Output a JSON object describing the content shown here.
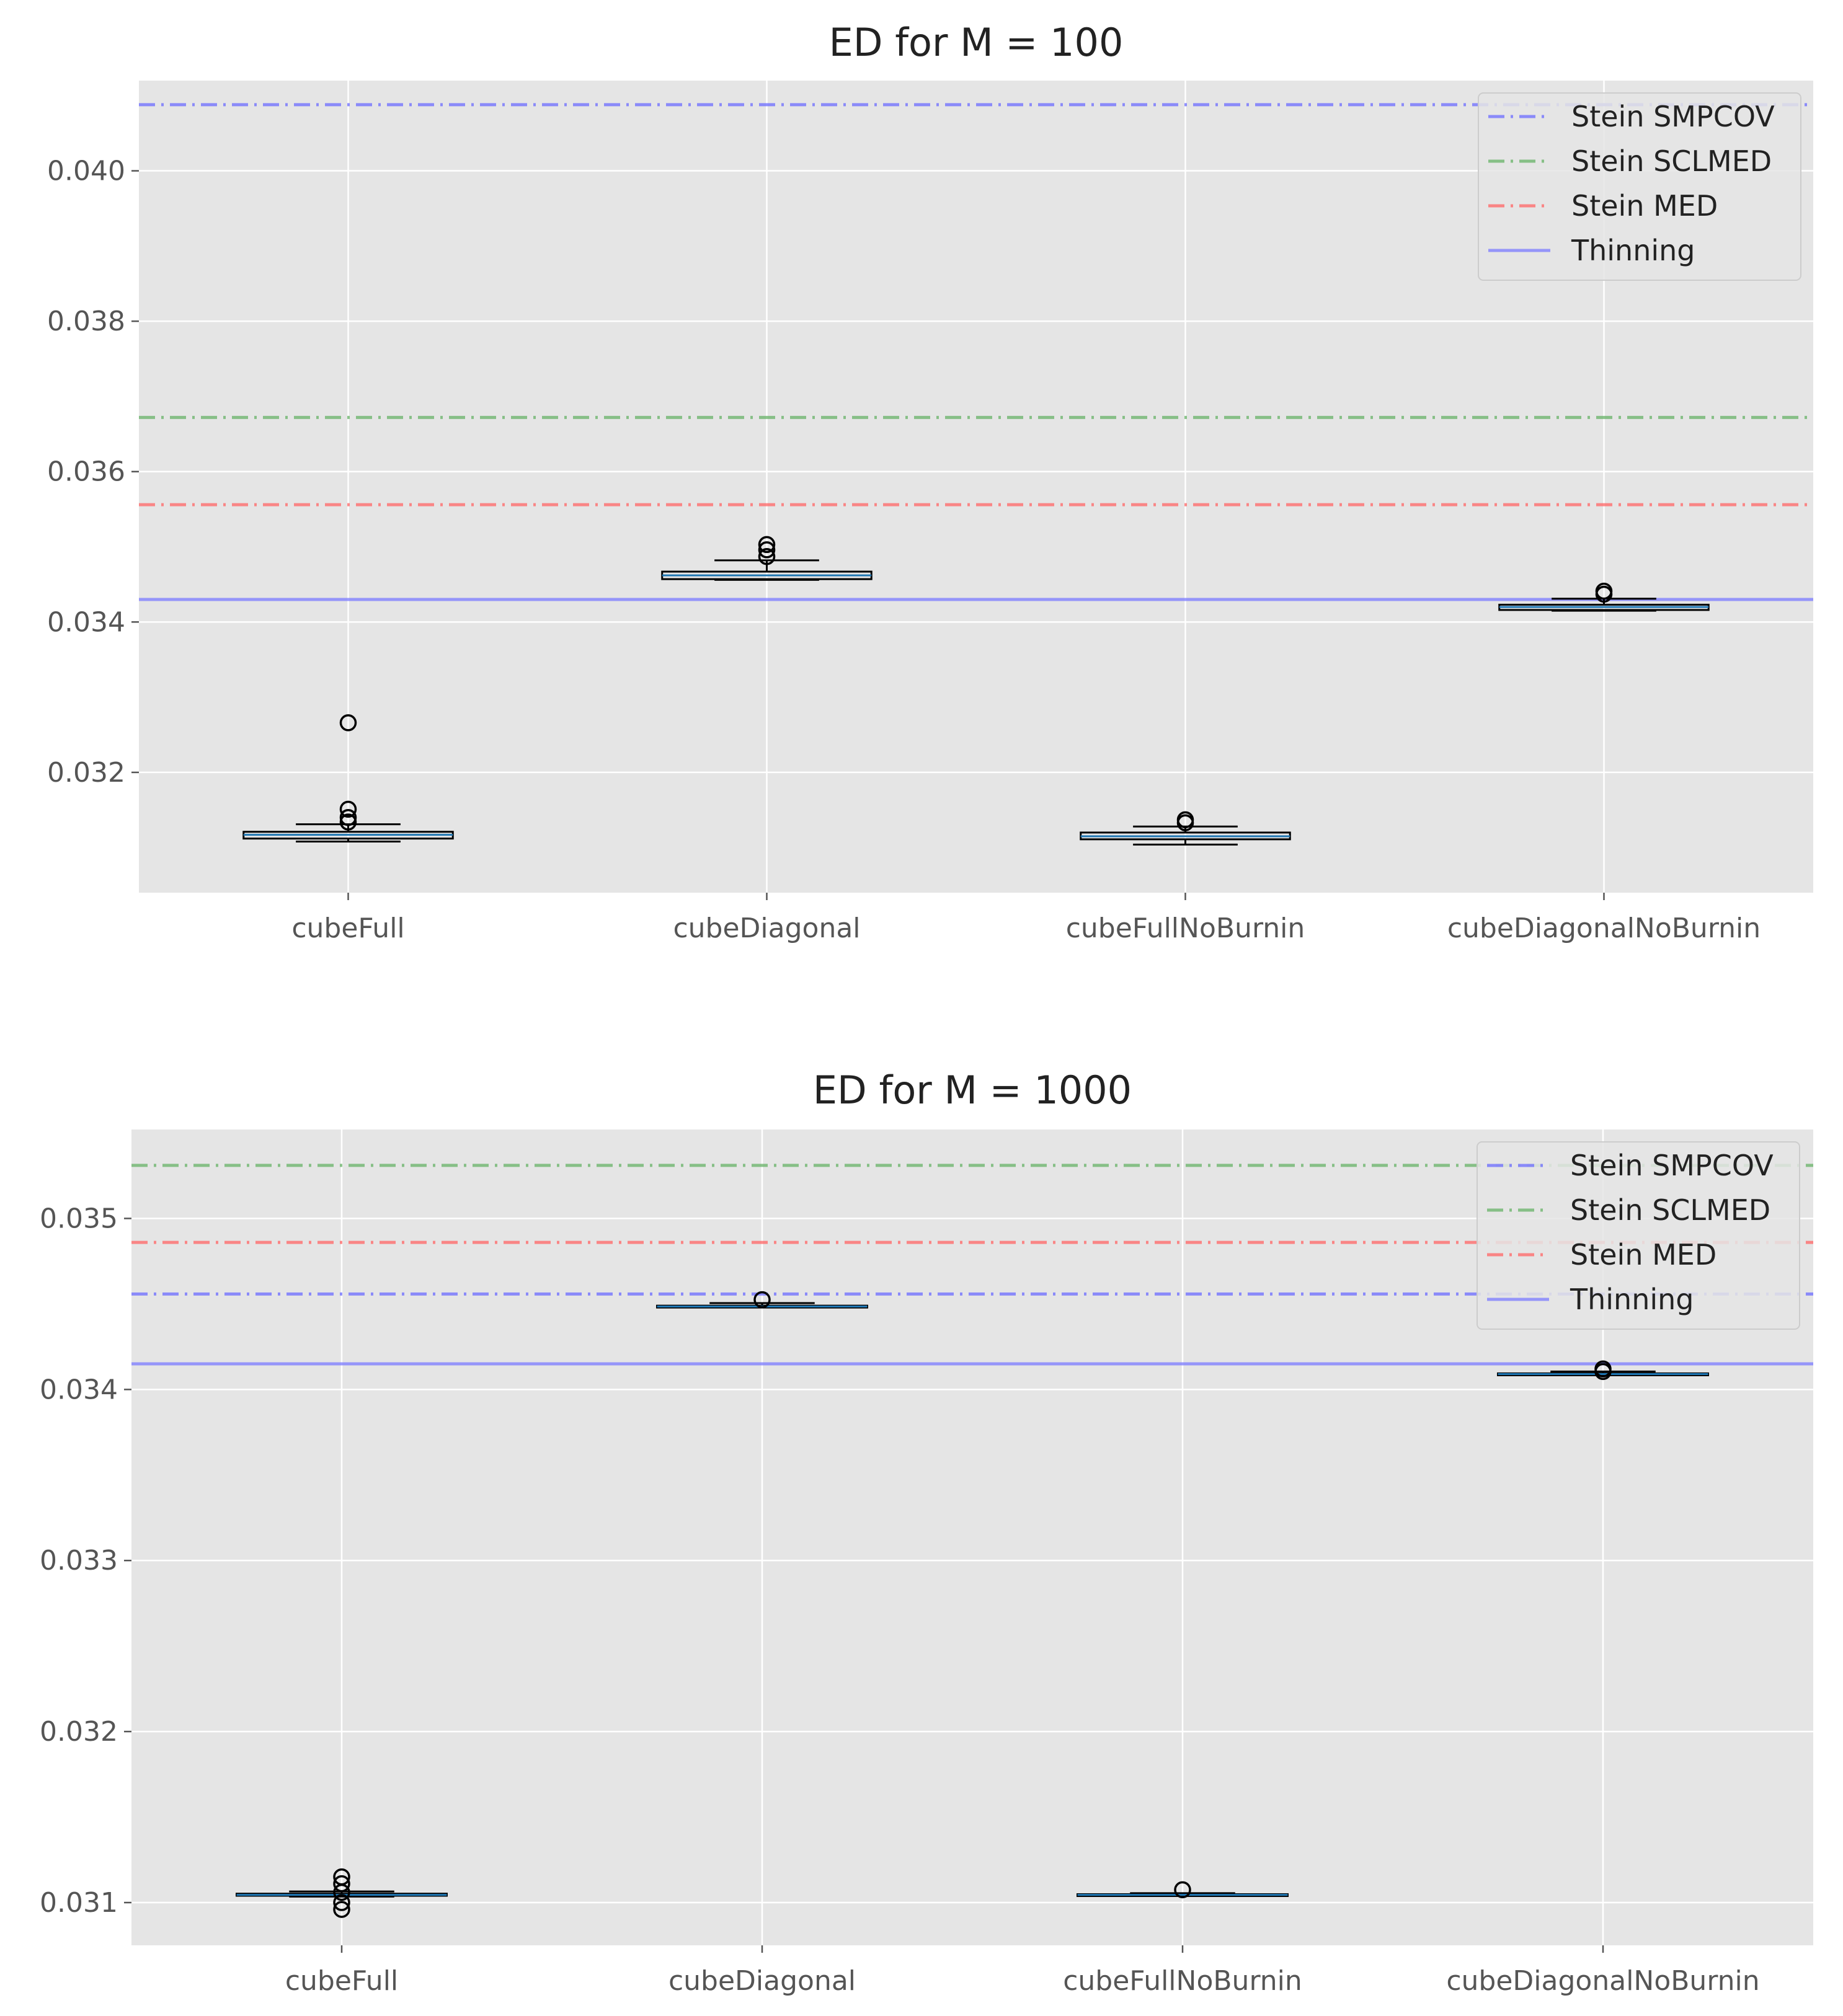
{
  "colors": {
    "background": "#e5e5e5",
    "grid": "#ffffff",
    "smpcov": "#6b6bff",
    "sclmed": "#66b266",
    "med": "#ff6464",
    "thinning": "#7a7aff",
    "median": "#1f77b4",
    "box": "#000000"
  },
  "chart_data": [
    {
      "type": "box",
      "title": "ED for M = 100",
      "categories": [
        "cubeFull",
        "cubeDiagonal",
        "cubeFullNoBurnin",
        "cubeDiagonalNoBurnin"
      ],
      "ylim": [
        0.0304,
        0.0412
      ],
      "yticks": [
        0.032,
        0.034,
        0.036,
        0.038,
        0.04
      ],
      "ytick_labels": [
        "0.032",
        "0.034",
        "0.036",
        "0.038",
        "0.040"
      ],
      "grid": true,
      "legend_position": "top-right",
      "reference_lines": [
        {
          "name": "Stein SMPCOV",
          "value": 0.04088,
          "style": "dashdot",
          "color_key": "smpcov"
        },
        {
          "name": "Stein SCLMED",
          "value": 0.03672,
          "style": "dashdot",
          "color_key": "sclmed"
        },
        {
          "name": "Stein MED",
          "value": 0.03556,
          "style": "dashdot",
          "color_key": "med"
        },
        {
          "name": "Thinning",
          "value": 0.0343,
          "style": "solid",
          "color_key": "thinning"
        }
      ],
      "boxes": [
        {
          "whisker_low": 0.03108,
          "q1": 0.03112,
          "median": 0.03117,
          "q3": 0.03121,
          "whisker_high": 0.03131,
          "outliers": [
            0.03266,
            0.03151,
            0.0314,
            0.03134
          ]
        },
        {
          "whisker_low": 0.03456,
          "q1": 0.03457,
          "median": 0.03462,
          "q3": 0.03467,
          "whisker_high": 0.03482,
          "outliers": [
            0.03503,
            0.03496,
            0.03487
          ]
        },
        {
          "whisker_low": 0.03104,
          "q1": 0.03111,
          "median": 0.03115,
          "q3": 0.0312,
          "whisker_high": 0.03128,
          "outliers": [
            0.03137,
            0.03133
          ]
        },
        {
          "whisker_low": 0.03415,
          "q1": 0.03416,
          "median": 0.0342,
          "q3": 0.03423,
          "whisker_high": 0.03431,
          "outliers": [
            0.03441,
            0.03437
          ]
        }
      ]
    },
    {
      "type": "box",
      "title": "ED for M = 1000",
      "categories": [
        "cubeFull",
        "cubeDiagonal",
        "cubeFullNoBurnin",
        "cubeDiagonalNoBurnin"
      ],
      "ylim": [
        0.03075,
        0.03552
      ],
      "yticks": [
        0.031,
        0.032,
        0.033,
        0.034,
        0.035
      ],
      "ytick_labels": [
        "0.031",
        "0.032",
        "0.033",
        "0.034",
        "0.035"
      ],
      "grid": true,
      "legend_position": "top-right",
      "reference_lines": [
        {
          "name": "Stein SMPCOV",
          "value": 0.034558,
          "style": "dashdot",
          "color_key": "smpcov"
        },
        {
          "name": "Stein SCLMED",
          "value": 0.03531,
          "style": "dashdot",
          "color_key": "sclmed"
        },
        {
          "name": "Stein MED",
          "value": 0.03486,
          "style": "dashdot",
          "color_key": "med"
        },
        {
          "name": "Thinning",
          "value": 0.03415,
          "style": "solid",
          "color_key": "thinning"
        }
      ],
      "boxes": [
        {
          "whisker_low": 0.031035,
          "q1": 0.03104,
          "median": 0.031045,
          "q3": 0.031052,
          "whisker_high": 0.031065,
          "outliers": [
            0.03115,
            0.03111,
            0.03106,
            0.031,
            0.03096
          ]
        },
        {
          "whisker_low": 0.03448,
          "q1": 0.034482,
          "median": 0.034485,
          "q3": 0.03449,
          "whisker_high": 0.034505,
          "outliers": [
            0.034525
          ]
        },
        {
          "whisker_low": 0.03104,
          "q1": 0.031042,
          "median": 0.031045,
          "q3": 0.031049,
          "whisker_high": 0.031055,
          "outliers": [
            0.031075
          ]
        },
        {
          "whisker_low": 0.034085,
          "q1": 0.034087,
          "median": 0.03409,
          "q3": 0.034094,
          "whisker_high": 0.034105,
          "outliers": [
            0.03412,
            0.034105
          ]
        }
      ]
    }
  ]
}
